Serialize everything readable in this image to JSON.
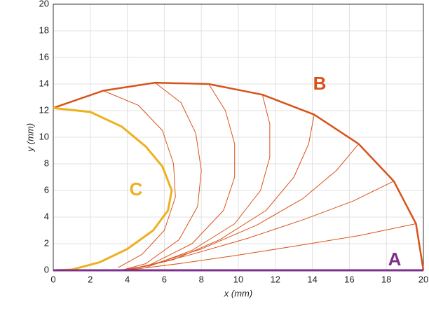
{
  "chart_data": {
    "type": "line",
    "xlabel": "x (mm)",
    "ylabel": "y (mm)",
    "xlim": [
      0,
      20
    ],
    "ylim": [
      0,
      20
    ],
    "xticks": [
      0,
      2,
      4,
      6,
      8,
      10,
      12,
      14,
      16,
      18,
      20
    ],
    "yticks": [
      0,
      2,
      4,
      6,
      8,
      10,
      12,
      14,
      16,
      18,
      20
    ],
    "grid": true,
    "series": [
      {
        "color": "#d95319",
        "width": 1,
        "x": [
          2.7,
          4.6,
          5.9,
          6.5,
          6.6,
          6,
          4.8,
          3.5
        ],
        "values": [
          13.5,
          12.4,
          10.5,
          8,
          5.5,
          3,
          1.2,
          0.2
        ]
      },
      {
        "color": "#d95319",
        "width": 1,
        "x": [
          5.5,
          6.9,
          7.7,
          8,
          7.8,
          6.8,
          5,
          3.8
        ],
        "values": [
          14.1,
          12.6,
          10.3,
          7.5,
          4.8,
          2.3,
          0.5,
          0.05
        ]
      },
      {
        "color": "#d95319",
        "width": 1,
        "x": [
          8.4,
          9.3,
          9.8,
          9.8,
          9.2,
          7.5,
          5.2,
          4
        ],
        "values": [
          14,
          12,
          9.5,
          7,
          4.5,
          2,
          0.4,
          0
        ]
      },
      {
        "color": "#d95319",
        "width": 1,
        "x": [
          11.3,
          11.7,
          11.7,
          11.2,
          9.8,
          7.5,
          5
        ],
        "values": [
          13.2,
          11,
          8.5,
          6,
          3.5,
          1.5,
          0.2
        ]
      },
      {
        "color": "#d95319",
        "width": 1,
        "x": [
          14.1,
          13.8,
          13,
          11.5,
          9,
          6.5,
          4
        ],
        "values": [
          11.7,
          9.5,
          7,
          4.5,
          2.3,
          0.8,
          0
        ]
      },
      {
        "color": "#d95319",
        "width": 1,
        "x": [
          16.5,
          15.3,
          13.5,
          11,
          8,
          5.5,
          4
        ],
        "values": [
          9.5,
          7.5,
          5.4,
          3.4,
          1.6,
          0.5,
          0.05
        ]
      },
      {
        "color": "#d95319",
        "width": 1,
        "x": [
          18.4,
          16.2,
          13.5,
          10.5,
          7.5,
          5,
          3.5
        ],
        "values": [
          6.7,
          5.2,
          3.8,
          2.4,
          1.2,
          0.3,
          0
        ]
      },
      {
        "color": "#d95319",
        "width": 1,
        "x": [
          19.6,
          16.5,
          13,
          9.8,
          6.8,
          4.5,
          3
        ],
        "values": [
          3.5,
          2.6,
          1.8,
          1.1,
          0.5,
          0.1,
          0
        ]
      },
      {
        "color": "#d95319",
        "width": 2.5,
        "x": [
          0,
          2.7,
          5.5,
          8.4,
          11.3,
          14.1,
          16.5,
          18.4,
          19.6,
          20
        ],
        "values": [
          12.2,
          13.5,
          14.1,
          14,
          13.2,
          11.7,
          9.5,
          6.7,
          3.5,
          0
        ]
      },
      {
        "color": "#edb120",
        "width": 3,
        "x": [
          0,
          2,
          3.7,
          5,
          5.9,
          6.4,
          6.2,
          5.4,
          4,
          2.5,
          1,
          0
        ],
        "values": [
          12.2,
          11.9,
          10.8,
          9.3,
          7.8,
          6,
          4.5,
          3,
          1.6,
          0.6,
          0.05,
          0
        ]
      },
      {
        "color": "#7e2f8e",
        "width": 3,
        "x": [
          0,
          20
        ],
        "values": [
          0,
          0
        ]
      }
    ],
    "annotations": [
      {
        "text": "B",
        "color": "#d95319"
      },
      {
        "text": "C",
        "color": "#edb120"
      },
      {
        "text": "A",
        "color": "#7e2f8e"
      }
    ]
  }
}
